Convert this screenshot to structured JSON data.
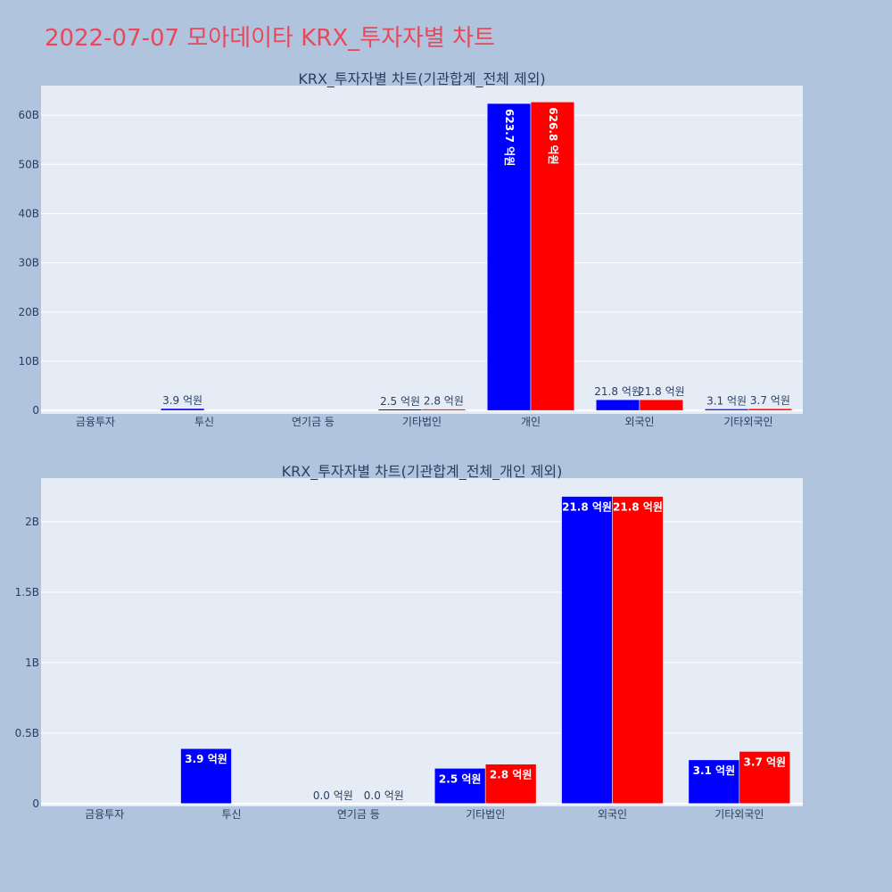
{
  "page": {
    "title": "2022-07-07 모아데이타 KRX_투자자별 차트",
    "title_color": "#e8485a",
    "background": "#b0c4de",
    "plot_background": "#e5ecf6"
  },
  "chart_data": [
    {
      "type": "bar",
      "title": "KRX_투자자별 차트(기관합계_전체 제외)",
      "categories": [
        "금융투자",
        "투신",
        "연기금 등",
        "기타법인",
        "개인",
        "외국인",
        "기타외국인"
      ],
      "series": [
        {
          "color": "#0000ff",
          "values": [
            null,
            390000000,
            null,
            250000000,
            62370000000,
            2180000000,
            310000000
          ],
          "labels": [
            "",
            "3.9 억원",
            "",
            "2.5 억원",
            "623.7 억원",
            "21.8 억원",
            "3.1 억원"
          ]
        },
        {
          "color": "#ff0000",
          "values": [
            null,
            null,
            null,
            280000000,
            62680000000,
            2180000000,
            370000000
          ],
          "labels": [
            "",
            "",
            "",
            "2.8 억원",
            "626.8 억원",
            "21.8 억원",
            "3.7 억원"
          ]
        }
      ],
      "yticks": [
        0,
        10000000000,
        20000000000,
        30000000000,
        40000000000,
        50000000000,
        60000000000
      ],
      "ytick_labels": [
        "0",
        "10B",
        "20B",
        "30B",
        "40B",
        "50B",
        "60B"
      ],
      "ylim": [
        -700000000,
        66000000000
      ],
      "grid": true,
      "xlabel": "",
      "ylabel": ""
    },
    {
      "type": "bar",
      "title": "KRX_투자자별 차트(기관합계_전체_개인 제외)",
      "categories": [
        "금융투자",
        "투신",
        "연기금 등",
        "기타법인",
        "외국인",
        "기타외국인"
      ],
      "series": [
        {
          "color": "#0000ff",
          "values": [
            null,
            390000000,
            0,
            250000000,
            2180000000,
            310000000
          ],
          "labels": [
            "",
            "3.9 억원",
            "0.0 억원",
            "2.5 억원",
            "21.8 억원",
            "3.1 억원"
          ]
        },
        {
          "color": "#ff0000",
          "values": [
            null,
            null,
            0,
            280000000,
            2180000000,
            370000000
          ],
          "labels": [
            "",
            "",
            "0.0 억원",
            "2.8 억원",
            "21.8 억원",
            "3.7 억원"
          ]
        }
      ],
      "yticks": [
        0,
        500000000,
        1000000000,
        1500000000,
        2000000000
      ],
      "ytick_labels": [
        "0",
        "0.5B",
        "1B",
        "1.5B",
        "2B"
      ],
      "ylim": [
        -20000000,
        2310000000
      ],
      "grid": true,
      "xlabel": "",
      "ylabel": ""
    }
  ]
}
